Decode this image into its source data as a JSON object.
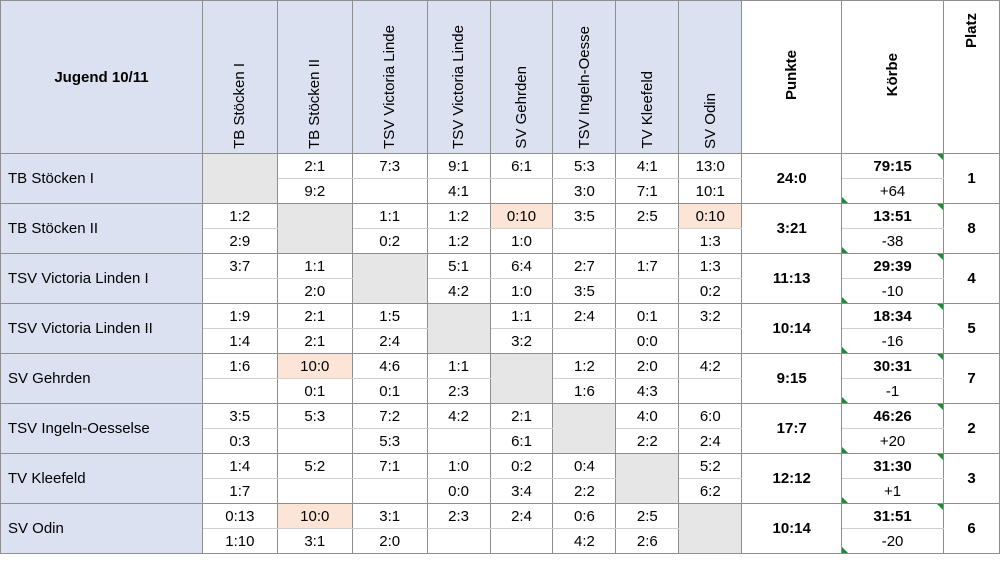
{
  "title": "Jugend 10/11",
  "columns": [
    "TB Stöcken I",
    "TB Stöcken II",
    "TSV Victoria Linde",
    "TSV Victoria Linde",
    "SV Gehrden",
    "TSV Ingeln-Oesse",
    "TV Kleefeld",
    "SV Odin"
  ],
  "summary_headers": {
    "punkte": "Punkte",
    "koerbe": "Körbe",
    "platz": "Platz"
  },
  "rows": [
    {
      "team": "TB Stöcken I",
      "self": 0,
      "top": [
        "",
        "2:1",
        "7:3",
        "9:1",
        "6:1",
        "5:3",
        "4:1",
        "13:0"
      ],
      "bottom": [
        "",
        "9:2",
        "",
        "4:1",
        "",
        "3:0",
        "7:1",
        "10:1"
      ],
      "punkte": "24:0",
      "koerbe": "79:15",
      "diff": "+64",
      "platz": "1"
    },
    {
      "team": "TB Stöcken II",
      "self": 1,
      "top": [
        "1:2",
        "",
        "1:1",
        "1:2",
        "0:10",
        "3:5",
        "2:5",
        "0:10"
      ],
      "bottom": [
        "2:9",
        "",
        "0:2",
        "1:2",
        "1:0",
        "",
        "",
        "1:3"
      ],
      "punkte": "3:21",
      "koerbe": "13:51",
      "diff": "-38",
      "platz": "8"
    },
    {
      "team": "TSV Victoria Linden I",
      "self": 2,
      "top": [
        "3:7",
        "1:1",
        "",
        "5:1",
        "6:4",
        "2:7",
        "1:7",
        "1:3"
      ],
      "bottom": [
        "",
        "2:0",
        "",
        "4:2",
        "1:0",
        "3:5",
        "",
        "0:2"
      ],
      "punkte": "11:13",
      "koerbe": "29:39",
      "diff": "-10",
      "platz": "4"
    },
    {
      "team": "TSV Victoria Linden II",
      "self": 3,
      "top": [
        "1:9",
        "2:1",
        "1:5",
        "",
        "1:1",
        "2:4",
        "0:1",
        "3:2"
      ],
      "bottom": [
        "1:4",
        "2:1",
        "2:4",
        "",
        "3:2",
        "",
        "0:0",
        ""
      ],
      "punkte": "10:14",
      "koerbe": "18:34",
      "diff": "-16",
      "platz": "5"
    },
    {
      "team": "SV Gehrden",
      "self": 4,
      "top": [
        "1:6",
        "10:0",
        "4:6",
        "1:1",
        "",
        "1:2",
        "2:0",
        "4:2"
      ],
      "bottom": [
        "",
        "0:1",
        "0:1",
        "2:3",
        "",
        "1:6",
        "4:3",
        ""
      ],
      "punkte": "9:15",
      "koerbe": "30:31",
      "diff": "-1",
      "platz": "7"
    },
    {
      "team": "TSV Ingeln-Oesselse",
      "self": 5,
      "top": [
        "3:5",
        "5:3",
        "7:2",
        "4:2",
        "2:1",
        "",
        "4:0",
        "6:0"
      ],
      "bottom": [
        "0:3",
        "",
        "5:3",
        "",
        "6:1",
        "",
        "2:2",
        "2:4"
      ],
      "punkte": "17:7",
      "koerbe": "46:26",
      "diff": "+20",
      "platz": "2"
    },
    {
      "team": "TV Kleefeld",
      "self": 6,
      "top": [
        "1:4",
        "5:2",
        "7:1",
        "1:0",
        "0:2",
        "0:4",
        "",
        "5:2"
      ],
      "bottom": [
        "1:7",
        "",
        "",
        "0:0",
        "3:4",
        "2:2",
        "",
        "6:2"
      ],
      "punkte": "12:12",
      "koerbe": "31:30",
      "diff": "+1",
      "platz": "3"
    },
    {
      "team": "SV Odin",
      "self": 7,
      "top": [
        "0:13",
        "10:0",
        "3:1",
        "2:3",
        "2:4",
        "0:6",
        "2:5",
        ""
      ],
      "bottom": [
        "1:10",
        "3:1",
        "2:0",
        "",
        "",
        "4:2",
        "2:6",
        ""
      ],
      "punkte": "10:14",
      "koerbe": "31:51",
      "diff": "-20",
      "platz": "6"
    }
  ],
  "highlight_color": "#fce4d6",
  "header_color": "#dbe1f1",
  "self_cell_color": "#e6e6e6",
  "note_marker_color": "#1e8a35"
}
